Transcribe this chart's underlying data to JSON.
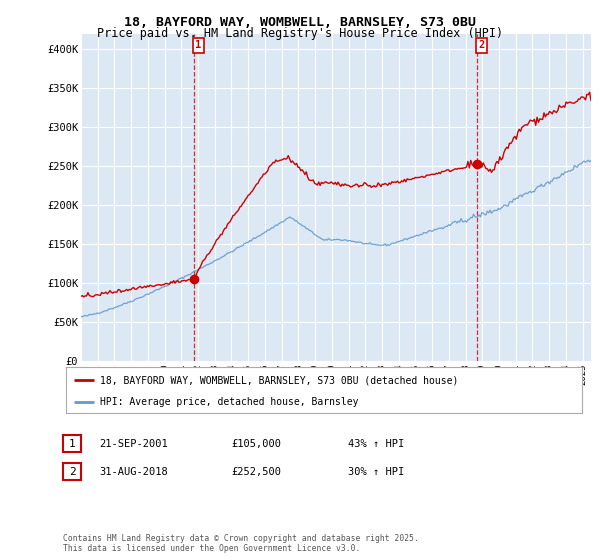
{
  "title_line1": "18, BAYFORD WAY, WOMBWELL, BARNSLEY, S73 0BU",
  "title_line2": "Price paid vs. HM Land Registry's House Price Index (HPI)",
  "background_color": "#ffffff",
  "plot_bg_color": "#dce9f5",
  "grid_color": "#ffffff",
  "red_color": "#cc0000",
  "blue_color": "#6699cc",
  "legend_label_red": "18, BAYFORD WAY, WOMBWELL, BARNSLEY, S73 0BU (detached house)",
  "legend_label_blue": "HPI: Average price, detached house, Barnsley",
  "annotation1_label": "1",
  "annotation1_date": "21-SEP-2001",
  "annotation1_price": "£105,000",
  "annotation1_hpi": "43% ↑ HPI",
  "annotation2_label": "2",
  "annotation2_date": "31-AUG-2018",
  "annotation2_price": "£252,500",
  "annotation2_hpi": "30% ↑ HPI",
  "footer": "Contains HM Land Registry data © Crown copyright and database right 2025.\nThis data is licensed under the Open Government Licence v3.0.",
  "xmin": 1995.0,
  "xmax": 2025.5,
  "ymin": 0,
  "ymax": 420000,
  "sale1_x": 2001.73,
  "sale1_y": 105000,
  "sale2_x": 2018.67,
  "sale2_y": 252500,
  "yticks": [
    0,
    50000,
    100000,
    150000,
    200000,
    250000,
    300000,
    350000,
    400000
  ],
  "ytick_labels": [
    "£0",
    "£50K",
    "£100K",
    "£150K",
    "£200K",
    "£250K",
    "£300K",
    "£350K",
    "£400K"
  ]
}
